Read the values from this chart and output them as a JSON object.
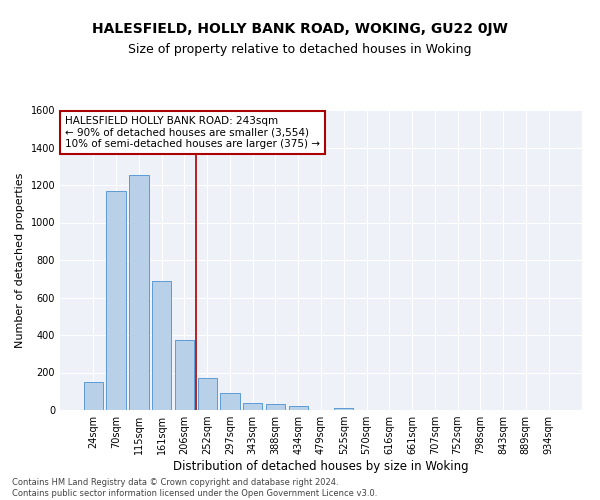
{
  "title": "HALESFIELD, HOLLY BANK ROAD, WOKING, GU22 0JW",
  "subtitle": "Size of property relative to detached houses in Woking",
  "xlabel": "Distribution of detached houses by size in Woking",
  "ylabel": "Number of detached properties",
  "footer": "Contains HM Land Registry data © Crown copyright and database right 2024.\nContains public sector information licensed under the Open Government Licence v3.0.",
  "bar_labels": [
    "24sqm",
    "70sqm",
    "115sqm",
    "161sqm",
    "206sqm",
    "252sqm",
    "297sqm",
    "343sqm",
    "388sqm",
    "434sqm",
    "479sqm",
    "525sqm",
    "570sqm",
    "616sqm",
    "661sqm",
    "707sqm",
    "752sqm",
    "798sqm",
    "843sqm",
    "889sqm",
    "934sqm"
  ],
  "bar_values": [
    148,
    1168,
    1255,
    688,
    375,
    170,
    90,
    38,
    30,
    20,
    0,
    12,
    0,
    0,
    0,
    0,
    0,
    0,
    0,
    0,
    0
  ],
  "bar_color": "#b8d0e8",
  "bar_edge_color": "#5b9bd5",
  "vline_x_idx": 5,
  "vline_color": "#aa0000",
  "annotation_text": "HALESFIELD HOLLY BANK ROAD: 243sqm\n← 90% of detached houses are smaller (3,554)\n10% of semi-detached houses are larger (375) →",
  "annotation_box_color": "#ffffff",
  "annotation_box_edge": "#aa0000",
  "ylim": [
    0,
    1600
  ],
  "yticks": [
    0,
    200,
    400,
    600,
    800,
    1000,
    1200,
    1400,
    1600
  ],
  "bg_color": "#eef2f8",
  "title_fontsize": 10,
  "subtitle_fontsize": 9,
  "tick_fontsize": 7,
  "ylabel_fontsize": 8,
  "xlabel_fontsize": 8.5,
  "footer_fontsize": 6
}
